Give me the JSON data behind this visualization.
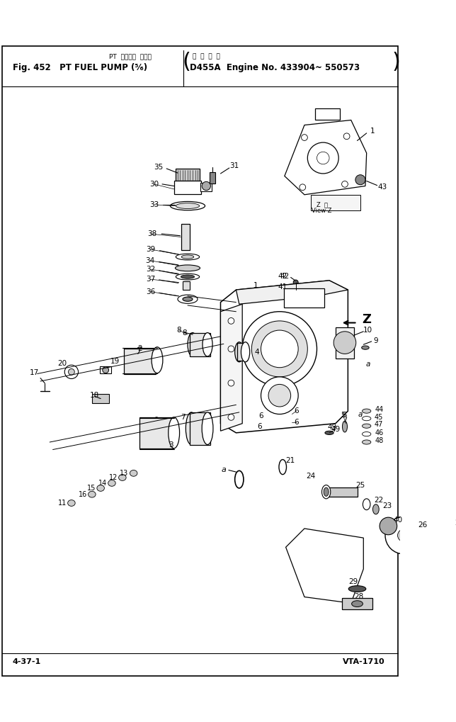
{
  "title_jp": "PT  フェエル  ボンプ",
  "title_en": "Fig. 452   PT FUEL PUMP (⁵⁄₆)",
  "title_right_jp": "適  用  号  機",
  "title_right_en": "D455A  Engine No. 433904~ 550573",
  "footer_left": "4-37-1",
  "footer_right": "VTA-1710",
  "bg": "#ffffff",
  "fg": "#000000",
  "fw": 6.44,
  "fh": 10.19,
  "dpi": 100
}
